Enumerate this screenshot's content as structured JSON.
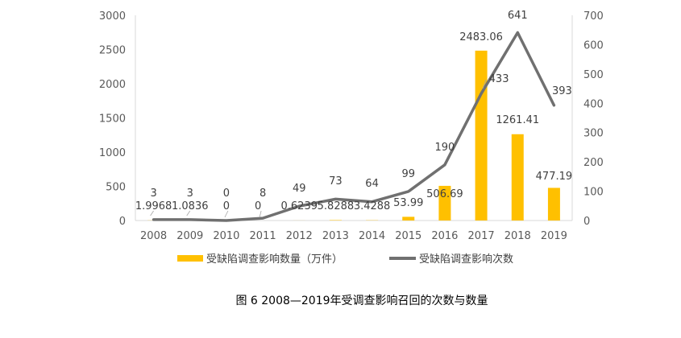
{
  "chart_data": {
    "type": "bar+line",
    "categories": [
      "2008",
      "2009",
      "2010",
      "2011",
      "2012",
      "2013",
      "2014",
      "2015",
      "2016",
      "2017",
      "2018",
      "2019"
    ],
    "series": [
      {
        "name": "受缺陷调查影响数量（万件）",
        "type": "bar",
        "axis": "left",
        "values": [
          1.9968,
          1.0836,
          0,
          0,
          0.6239,
          5.8288,
          3.4288,
          53.99,
          506.69,
          2483.06,
          1261.41,
          477.19
        ],
        "labels": [
          "1.9968",
          "1.0836",
          "0",
          "0",
          "0.6239",
          "5.8288",
          "3.4288",
          "53.99",
          "506.69",
          "2483.06",
          "1261.41",
          "477.19"
        ],
        "color": "#FFC000"
      },
      {
        "name": "受缺陷调查影响次数",
        "type": "line",
        "axis": "right",
        "values": [
          3,
          3,
          0,
          8,
          49,
          73,
          64,
          99,
          190,
          433,
          641,
          393
        ],
        "labels": [
          "3",
          "3",
          "0",
          "8",
          "49",
          "73",
          "64",
          "99",
          "190",
          "433",
          "641",
          "393"
        ],
        "color": "#707070"
      }
    ],
    "left_axis": {
      "min": 0,
      "max": 3000,
      "ticks": [
        "0",
        "500",
        "1000",
        "1500",
        "2000",
        "2500",
        "3000"
      ]
    },
    "right_axis": {
      "min": 0,
      "max": 700,
      "ticks": [
        "0",
        "100",
        "200",
        "300",
        "400",
        "500",
        "600",
        "700"
      ]
    },
    "legend_position": "bottom",
    "caption": "图 6 2008—2019年受调查影响召回的次数与数量"
  }
}
